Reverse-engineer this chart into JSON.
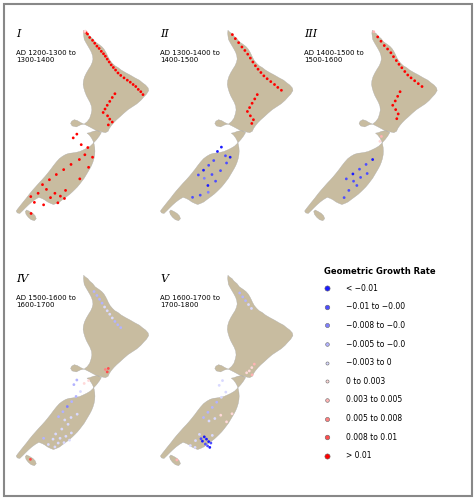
{
  "panels": [
    {
      "label": "I",
      "subtitle": "AD 1200-1300 to\n1300-1400"
    },
    {
      "label": "II",
      "subtitle": "AD 1300-1400 to\n1400-1500"
    },
    {
      "label": "III",
      "subtitle": "AD 1400-1500 to\n1500-1600"
    },
    {
      "label": "IV",
      "subtitle": "AD 1500-1600 to\n1600-1700"
    },
    {
      "label": "V",
      "subtitle": "AD 1600-1700 to\n1700-1800"
    }
  ],
  "legend_title": "Geometric Growth Rate",
  "map_color": "#c8bca0",
  "background_color": "#ffffff",
  "lon_min": 166.0,
  "lon_max": 178.8,
  "lat_min": -47.8,
  "lat_max": -34.0
}
